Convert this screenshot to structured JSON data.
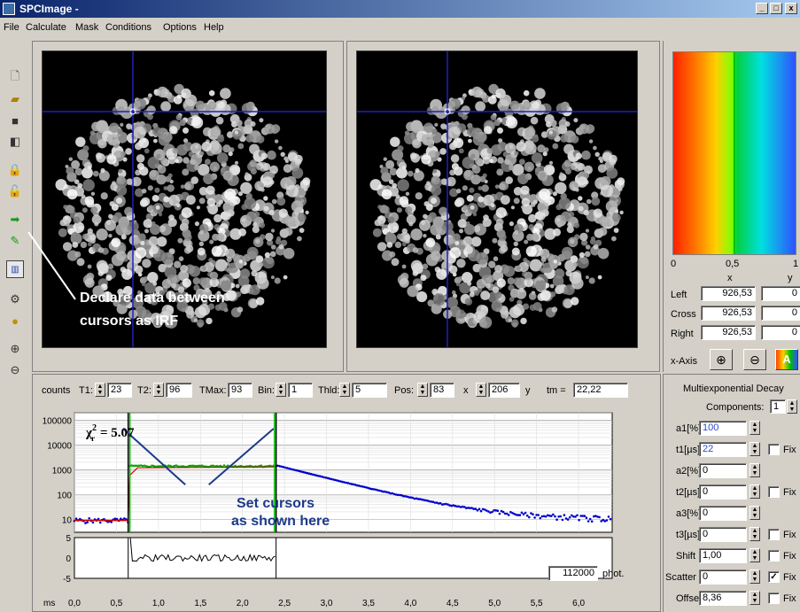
{
  "window": {
    "title": "SPCImage -"
  },
  "menu": [
    "File",
    "Calculate",
    "Mask",
    "Conditions",
    "Options",
    "Help"
  ],
  "toolbar_icons": [
    "new-icon",
    "open-icon",
    "save-icon",
    "save-all-icon",
    "lock-icon",
    "unlock-icon",
    "green-arrow-icon",
    "green-tool-icon",
    "irf-icon",
    "camera-icon",
    "yellow-tool-icon",
    "zoom-in-icon",
    "zoom-out-icon"
  ],
  "annotations": {
    "irf_line1": "Declare data between",
    "irf_line2": "cursors as IRF",
    "cursor_line1": "Set cursors",
    "cursor_line2": "as shown here"
  },
  "colorscale": {
    "ticks": [
      "0",
      "0,5",
      "1"
    ]
  },
  "cursor_table": {
    "col_x": "x",
    "col_y": "y",
    "rows": [
      {
        "label": "Left",
        "x": "926,53",
        "y": "0"
      },
      {
        "label": "Cross",
        "x": "926,53",
        "y": "0"
      },
      {
        "label": "Right",
        "x": "926,53",
        "y": "0"
      }
    ],
    "xaxis_label": "x-Axis"
  },
  "decay_params": {
    "counts_label": "counts",
    "t1_label": "T1:",
    "t1": "23",
    "t2_label": "T2:",
    "t2": "96",
    "tmax_label": "TMax:",
    "tmax": "93",
    "bin_label": "Bin:",
    "bin": "1",
    "thld_label": "Thld:",
    "thld": "5",
    "pos_label": "Pos:",
    "pos_x": "83",
    "x_label": "x",
    "pos_y": "206",
    "y_label": "y",
    "tm_label": "tm =",
    "tm": "22,22"
  },
  "multiexp": {
    "title": "Multiexponential Decay",
    "components_label": "Components:",
    "components": "1",
    "fix_label": "Fix",
    "rows": [
      {
        "label": "a1[%]",
        "value": "100",
        "fix": false,
        "has_fix": false
      },
      {
        "label": "t1[µs]",
        "value": "22",
        "fix": false,
        "has_fix": true
      },
      {
        "label": "a2[%]",
        "value": "0",
        "fix": false,
        "has_fix": false
      },
      {
        "label": "t2[µs]",
        "value": "0",
        "fix": false,
        "has_fix": true
      },
      {
        "label": "a3[%]",
        "value": "0",
        "fix": false,
        "has_fix": false
      },
      {
        "label": "t3[µs]",
        "value": "0",
        "fix": false,
        "has_fix": true
      },
      {
        "label": "Shift",
        "value": "1,00",
        "fix": false,
        "has_fix": true
      },
      {
        "label": "Scatter",
        "value": "0",
        "fix": true,
        "has_fix": true
      },
      {
        "label": "Offset",
        "value": "8,36",
        "fix": false,
        "has_fix": true
      }
    ]
  },
  "chi": {
    "symbol": "χ",
    "sub": "r",
    "sup": "2",
    "value": "=  5.07"
  },
  "photons": {
    "value": "112000",
    "unit": "phot."
  },
  "chart_data": {
    "type": "scatter",
    "xlabel": "ms",
    "ylabel": "",
    "x_ticks": [
      "0,0",
      "0,5",
      "1,0",
      "1,5",
      "2,0",
      "2,5",
      "3,0",
      "3,5",
      "4,0",
      "4,5",
      "5,0",
      "5,5",
      "6,0"
    ],
    "xlim": [
      0,
      6.4
    ],
    "y_ticks": [
      "100000",
      "10000",
      "1000",
      "100",
      "10"
    ],
    "ylim_log": [
      3,
      200000
    ],
    "y_scale": "log",
    "residual_ticks": [
      "5",
      "0",
      "-5"
    ],
    "cursor_left": 0.64,
    "cursor_right": 2.4,
    "cursor_extra": 2.45,
    "series": [
      {
        "points": "irf-baseline",
        "color": "#cc0000"
      },
      {
        "points": "decay",
        "color": "#0000cc"
      },
      {
        "points": "fit-plateau",
        "color": "#00aa00"
      }
    ]
  }
}
